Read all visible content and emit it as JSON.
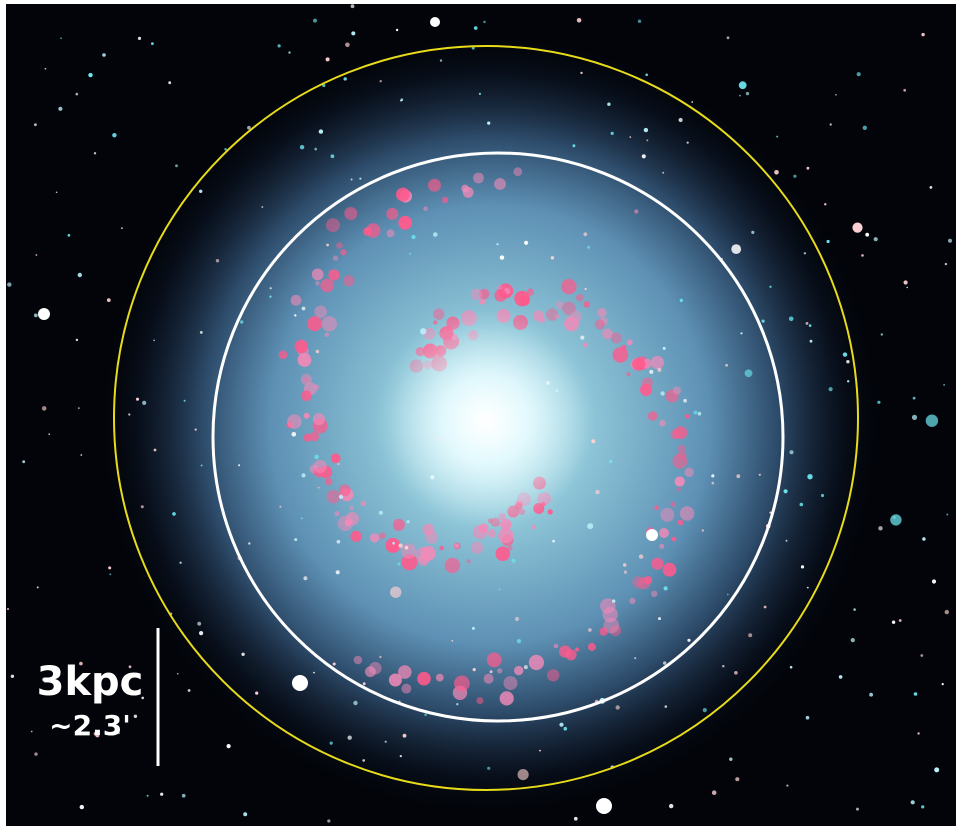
{
  "scale_bar": {
    "length": "3kpc",
    "angle": "~2.3'"
  }
}
